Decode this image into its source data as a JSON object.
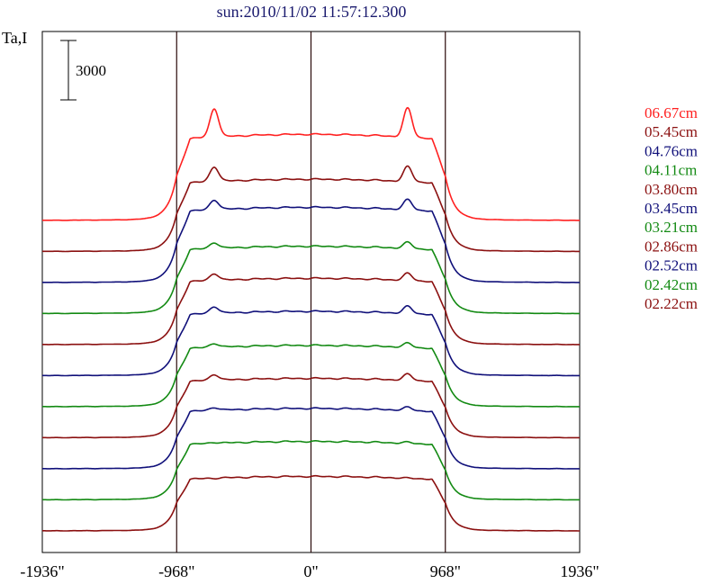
{
  "title": "sun:2010/11/02 11:57:12.300",
  "chart_data": {
    "type": "line",
    "title": "sun:2010/11/02 11:57:12.300",
    "ylabel": "Ta,I",
    "xlabel": "",
    "x_ticks": [
      "-1936\"",
      "-968\"",
      "0\"",
      "968\"",
      "1936\""
    ],
    "x_tick_values": [
      -1936,
      -968,
      0,
      968,
      1936
    ],
    "xlim": [
      -1936,
      1936
    ],
    "scale_bar": {
      "label": "3000",
      "value": 3000
    },
    "vertical_lines_at": [
      -968,
      0,
      968
    ],
    "series_layout": "stacked with vertical offset",
    "series": [
      {
        "name": "06.67cm",
        "color": "#ff2020",
        "baseline": 0.0,
        "limb_peak": 5800,
        "center": 4350
      },
      {
        "name": "05.45cm",
        "color": "#8b1010",
        "baseline": 0.0,
        "limb_peak": 4400,
        "center": 3650
      },
      {
        "name": "04.76cm",
        "color": "#10107a",
        "baseline": 0.0,
        "limb_peak": 4300,
        "center": 3800
      },
      {
        "name": "04.11cm",
        "color": "#138a13",
        "baseline": 0.0,
        "limb_peak": 3700,
        "center": 3400
      },
      {
        "name": "03.80cm",
        "color": "#8b1010",
        "baseline": 0.0,
        "limb_peak": 3700,
        "center": 3350
      },
      {
        "name": "03.45cm",
        "color": "#10107a",
        "baseline": 0.0,
        "limb_peak": 3600,
        "center": 3250
      },
      {
        "name": "03.21cm",
        "color": "#138a13",
        "baseline": 0.0,
        "limb_peak": 3300,
        "center": 3100
      },
      {
        "name": "02.86cm",
        "color": "#8b1010",
        "baseline": 0.0,
        "limb_peak": 3300,
        "center": 3000
      },
      {
        "name": "02.52cm",
        "color": "#10107a",
        "baseline": 0.0,
        "limb_peak": 3200,
        "center": 3050
      },
      {
        "name": "02.42cm",
        "color": "#138a13",
        "baseline": 0.0,
        "limb_peak": 3000,
        "center": 2950
      },
      {
        "name": "02.22cm",
        "color": "#8b1010",
        "baseline": 0.0,
        "limb_peak": 2700,
        "center": 2750
      }
    ],
    "grid": false,
    "legend_position": "right"
  }
}
